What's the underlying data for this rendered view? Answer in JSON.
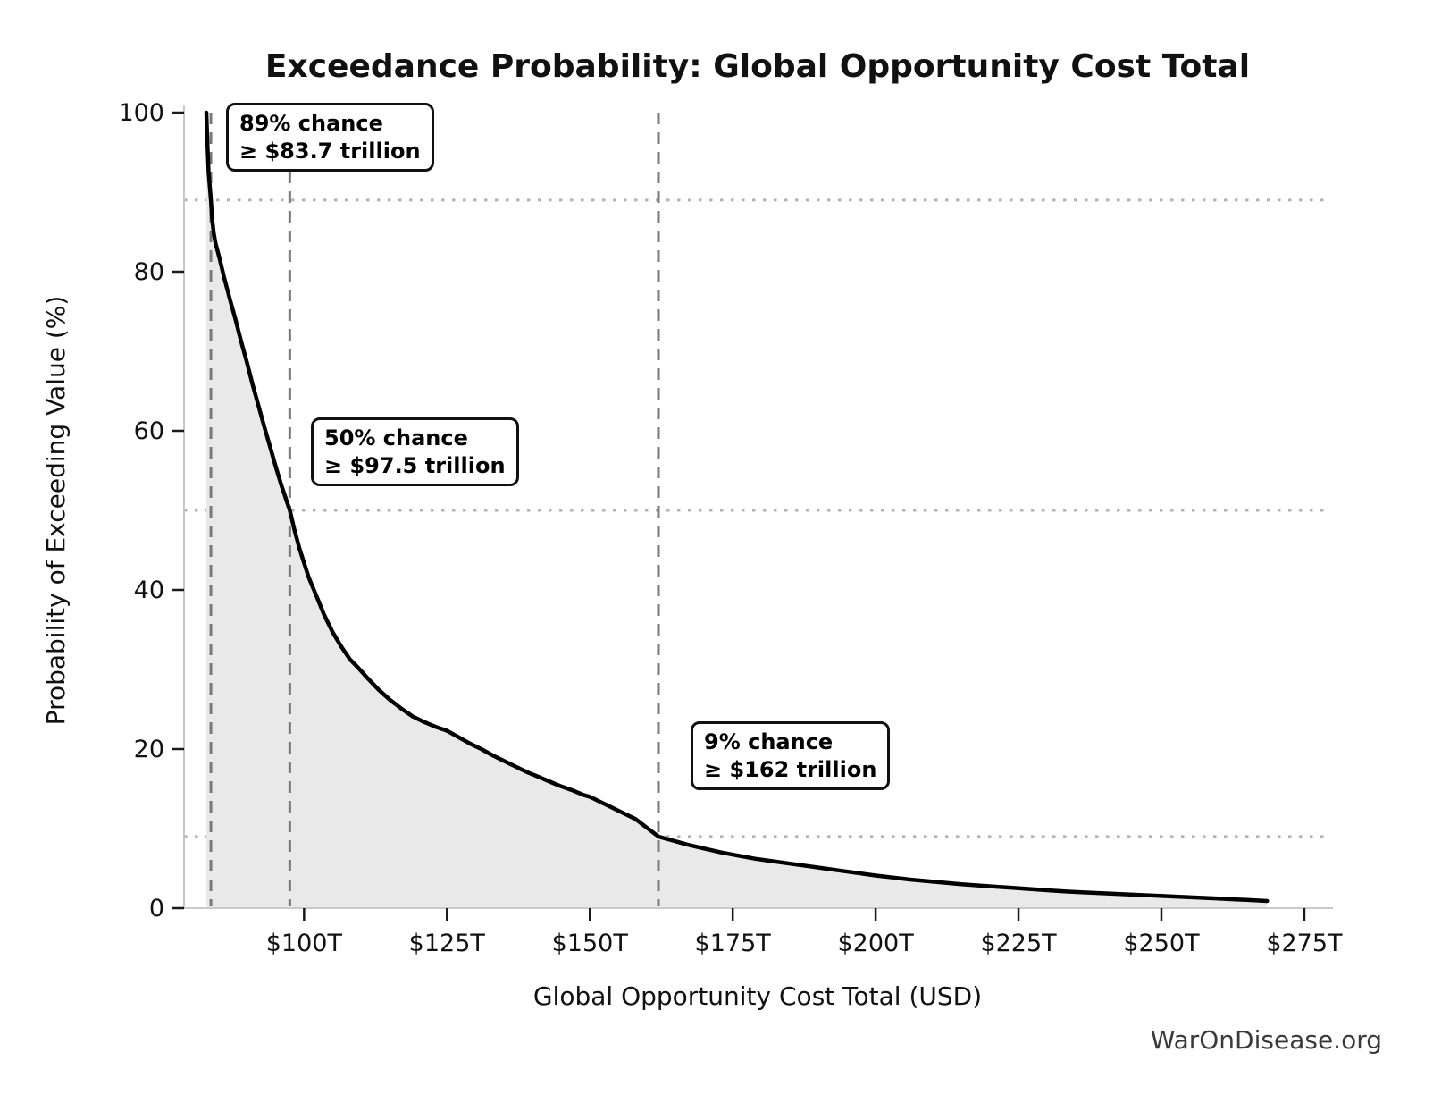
{
  "title": "Exceedance Probability: Global Opportunity Cost Total",
  "watermark": "WarOnDisease.org",
  "chart_data": {
    "type": "area",
    "title": "Exceedance Probability: Global Opportunity Cost Total",
    "xlabel": "Global Opportunity Cost Total (USD)",
    "ylabel": "Probability of Exceeding Value (%)",
    "xlim": [
      79,
      279.7
    ],
    "ylim": [
      0,
      100
    ],
    "x_units": "trillions_usd",
    "grid": "reference-lines-only",
    "legend": false,
    "line_color": "#000000",
    "fill_color": "#e9e9e9",
    "dashed_line_color": "#7a7a7a",
    "dotted_line_color": "#b3b3b3",
    "spine_color": "#c9c9c9",
    "tick_color": "#1a1a1a",
    "x_ticks": [
      100,
      125,
      150,
      175,
      200,
      225,
      250,
      275
    ],
    "x_tick_labels": [
      "$100T",
      "$125T",
      "$150T",
      "$175T",
      "$200T",
      "$225T",
      "$250T",
      "$275T"
    ],
    "y_ticks": [
      0,
      20,
      40,
      60,
      80,
      100
    ],
    "y_tick_labels": [
      "0",
      "20",
      "40",
      "60",
      "80",
      "100"
    ],
    "series": [
      {
        "name": "Exceedance probability curve",
        "x": [
          82.9,
          83.1,
          83.3,
          83.7,
          83.9,
          84.2,
          84.5,
          85.2,
          86,
          87,
          88,
          89,
          90,
          91,
          92,
          93,
          94,
          95,
          96,
          97.5,
          98.3,
          99.2,
          100,
          100.8,
          101.6,
          102.3,
          103.5,
          105,
          106.5,
          108,
          109.5,
          111,
          113,
          115,
          117,
          119,
          121,
          123,
          125,
          127,
          129,
          131,
          133,
          135,
          137,
          139,
          141,
          143,
          145,
          147,
          149,
          150,
          152,
          154,
          156,
          158,
          160,
          162,
          164,
          167,
          170,
          173,
          176,
          179,
          182,
          185,
          188,
          191,
          194,
          197,
          200,
          203,
          206,
          209,
          212,
          215,
          218,
          221,
          224,
          227,
          230,
          233,
          236,
          239,
          242,
          245,
          248,
          251,
          254,
          257,
          260,
          263,
          266,
          268.5
        ],
        "y": [
          100,
          96,
          92.5,
          89,
          86.8,
          84.8,
          83.6,
          81.7,
          79.3,
          76.6,
          74,
          71.2,
          68.6,
          65.8,
          63.2,
          60.6,
          58.1,
          55.6,
          53.2,
          50,
          47.6,
          45.2,
          43.4,
          41.6,
          40.2,
          39,
          36.9,
          34.7,
          32.9,
          31.3,
          30.2,
          29,
          27.5,
          26.2,
          25.1,
          24.1,
          23.4,
          22.8,
          22.3,
          21.5,
          20.7,
          20,
          19.2,
          18.5,
          17.8,
          17.1,
          16.5,
          15.9,
          15.3,
          14.8,
          14.2,
          14,
          13.3,
          12.6,
          11.9,
          11.2,
          10.1,
          9,
          8.6,
          8,
          7.5,
          7,
          6.6,
          6.2,
          5.9,
          5.6,
          5.3,
          5,
          4.7,
          4.4,
          4.1,
          3.85,
          3.6,
          3.4,
          3.2,
          3,
          2.85,
          2.7,
          2.55,
          2.4,
          2.25,
          2.1,
          2,
          1.9,
          1.8,
          1.7,
          1.6,
          1.5,
          1.4,
          1.3,
          1.2,
          1.1,
          1.0,
          0.9
        ]
      }
    ],
    "reference_lines": [
      {
        "x": 83.7,
        "y": 89,
        "label_line1": "89% chance",
        "label_line2": "≥ $83.7 trillion"
      },
      {
        "x": 97.5,
        "y": 50,
        "label_line1": "50% chance",
        "label_line2": "≥ $97.5 trillion"
      },
      {
        "x": 162,
        "y": 9,
        "label_line1": "9% chance",
        "label_line2": "≥ $162 trillion"
      }
    ]
  }
}
